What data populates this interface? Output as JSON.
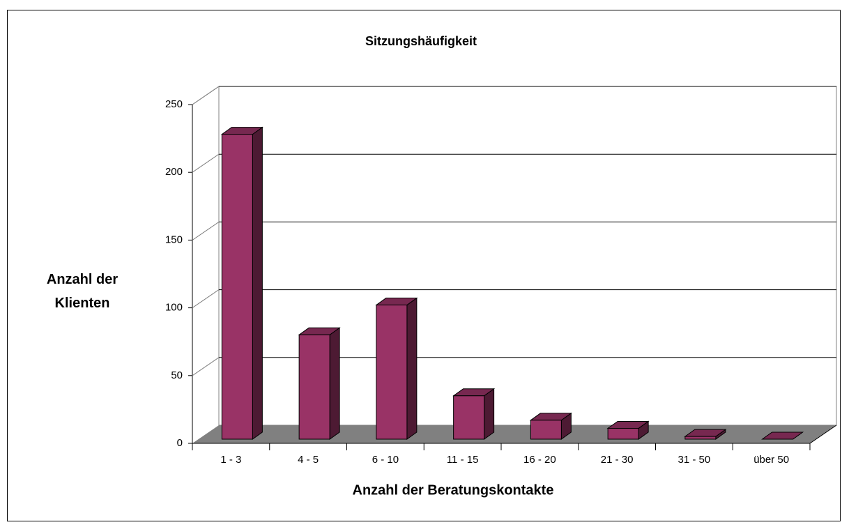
{
  "chart_data": {
    "type": "bar3d",
    "title": "Sitzungshäufigkeit",
    "x_label": "Anzahl der Beratungskontakte",
    "y_label": "Anzahl der Klienten",
    "categories": [
      "1 - 3",
      "4 - 5",
      "6 - 10",
      "11 - 15",
      "16 - 20",
      "21 - 30",
      "31 - 50",
      "über 50"
    ],
    "values": [
      225,
      77,
      99,
      32,
      14,
      8,
      2,
      0
    ],
    "color": "#993366",
    "ylim": [
      0,
      250
    ],
    "yticks": [
      0,
      50,
      100,
      150,
      200,
      250
    ],
    "grid": true
  }
}
